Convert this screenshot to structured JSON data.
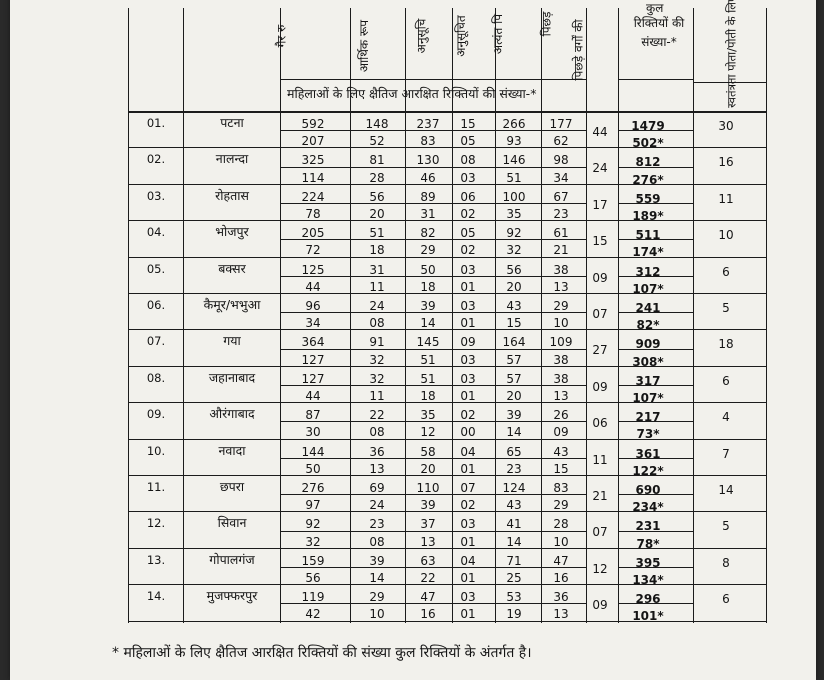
{
  "header": {
    "col_labels": [
      "गैर रु",
      "आर्थिक रूप",
      "अनुसूचि",
      "अनुसूचित",
      "अत्यंत पि",
      "पिछड़",
      "पिछड़े वर्गों की",
      "रिक्तियों की संख्या-*",
      "स्वतंत्रता पोता/पोती के लिए"
    ],
    "total_top": "कुल",
    "women_note": "महिलाओं के लिए क्षैतिज आरक्षित रिक्तियों की संख्या-*"
  },
  "rows": [
    {
      "sno": "01.",
      "district": "पटना",
      "gen": [
        "592",
        "148",
        "237",
        "15",
        "266",
        "177"
      ],
      "women": [
        "207",
        "52",
        "83",
        "05",
        "93",
        "62"
      ],
      "bc_women": "44",
      "total": "1479",
      "total_women": "502*",
      "freedom": "30"
    },
    {
      "sno": "02.",
      "district": "नालन्दा",
      "gen": [
        "325",
        "81",
        "130",
        "08",
        "146",
        "98"
      ],
      "women": [
        "114",
        "28",
        "46",
        "03",
        "51",
        "34"
      ],
      "bc_women": "24",
      "total": "812",
      "total_women": "276*",
      "freedom": "16"
    },
    {
      "sno": "03.",
      "district": "रोहतास",
      "gen": [
        "224",
        "56",
        "89",
        "06",
        "100",
        "67"
      ],
      "women": [
        "78",
        "20",
        "31",
        "02",
        "35",
        "23"
      ],
      "bc_women": "17",
      "total": "559",
      "total_women": "189*",
      "freedom": "11"
    },
    {
      "sno": "04.",
      "district": "भोजपुर",
      "gen": [
        "205",
        "51",
        "82",
        "05",
        "92",
        "61"
      ],
      "women": [
        "72",
        "18",
        "29",
        "02",
        "32",
        "21"
      ],
      "bc_women": "15",
      "total": "511",
      "total_women": "174*",
      "freedom": "10"
    },
    {
      "sno": "05.",
      "district": "बक्सर",
      "gen": [
        "125",
        "31",
        "50",
        "03",
        "56",
        "38"
      ],
      "women": [
        "44",
        "11",
        "18",
        "01",
        "20",
        "13"
      ],
      "bc_women": "09",
      "total": "312",
      "total_women": "107*",
      "freedom": "6"
    },
    {
      "sno": "06.",
      "district": "कैमूर/भभुआ",
      "gen": [
        "96",
        "24",
        "39",
        "03",
        "43",
        "29"
      ],
      "women": [
        "34",
        "08",
        "14",
        "01",
        "15",
        "10"
      ],
      "bc_women": "07",
      "total": "241",
      "total_women": "82*",
      "freedom": "5"
    },
    {
      "sno": "07.",
      "district": "गया",
      "gen": [
        "364",
        "91",
        "145",
        "09",
        "164",
        "109"
      ],
      "women": [
        "127",
        "32",
        "51",
        "03",
        "57",
        "38"
      ],
      "bc_women": "27",
      "total": "909",
      "total_women": "308*",
      "freedom": "18"
    },
    {
      "sno": "08.",
      "district": "जहानाबाद",
      "gen": [
        "127",
        "32",
        "51",
        "03",
        "57",
        "38"
      ],
      "women": [
        "44",
        "11",
        "18",
        "01",
        "20",
        "13"
      ],
      "bc_women": "09",
      "total": "317",
      "total_women": "107*",
      "freedom": "6"
    },
    {
      "sno": "09.",
      "district": "औरंगाबाद",
      "gen": [
        "87",
        "22",
        "35",
        "02",
        "39",
        "26"
      ],
      "women": [
        "30",
        "08",
        "12",
        "00",
        "14",
        "09"
      ],
      "bc_women": "06",
      "total": "217",
      "total_women": "73*",
      "freedom": "4"
    },
    {
      "sno": "10.",
      "district": "नवादा",
      "gen": [
        "144",
        "36",
        "58",
        "04",
        "65",
        "43"
      ],
      "women": [
        "50",
        "13",
        "20",
        "01",
        "23",
        "15"
      ],
      "bc_women": "11",
      "total": "361",
      "total_women": "122*",
      "freedom": "7"
    },
    {
      "sno": "11.",
      "district": "छपरा",
      "gen": [
        "276",
        "69",
        "110",
        "07",
        "124",
        "83"
      ],
      "women": [
        "97",
        "24",
        "39",
        "02",
        "43",
        "29"
      ],
      "bc_women": "21",
      "total": "690",
      "total_women": "234*",
      "freedom": "14"
    },
    {
      "sno": "12.",
      "district": "सिवान",
      "gen": [
        "92",
        "23",
        "37",
        "03",
        "41",
        "28"
      ],
      "women": [
        "32",
        "08",
        "13",
        "01",
        "14",
        "10"
      ],
      "bc_women": "07",
      "total": "231",
      "total_women": "78*",
      "freedom": "5"
    },
    {
      "sno": "13.",
      "district": "गोपालगंज",
      "gen": [
        "159",
        "39",
        "63",
        "04",
        "71",
        "47"
      ],
      "women": [
        "56",
        "14",
        "22",
        "01",
        "25",
        "16"
      ],
      "bc_women": "12",
      "total": "395",
      "total_women": "134*",
      "freedom": "8"
    },
    {
      "sno": "14.",
      "district": "मुजफ्फरपुर",
      "gen": [
        "119",
        "29",
        "47",
        "03",
        "53",
        "36"
      ],
      "women": [
        "42",
        "10",
        "16",
        "01",
        "19",
        "13"
      ],
      "bc_women": "09",
      "total": "296",
      "total_women": "101*",
      "freedom": "6"
    }
  ],
  "footnote": "* महिलाओं के लिए क्षैतिज आरक्षित रिक्तियों की संख्या कुल रिक्तियों के अंतर्गत है।"
}
